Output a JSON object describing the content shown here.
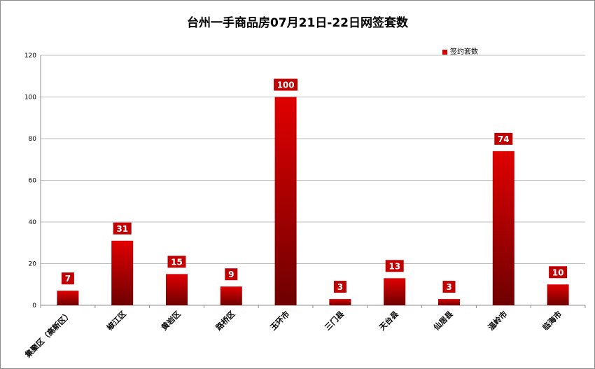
{
  "chart_data": {
    "type": "bar",
    "title": "台州一手商品房07月21日-22日网签套数",
    "categories": [
      "集聚区（高新区）",
      "椒江区",
      "黄岩区",
      "路桥区",
      "玉环市",
      "三门县",
      "天台县",
      "仙居县",
      "温岭市",
      "临海市"
    ],
    "series": [
      {
        "name": "签约套数",
        "values": [
          7,
          31,
          15,
          9,
          100,
          3,
          13,
          3,
          74,
          10
        ]
      }
    ],
    "ylim": [
      0,
      120
    ],
    "yticks": [
      0,
      20,
      40,
      60,
      80,
      100,
      120
    ],
    "grid": true,
    "legend": "top-right",
    "colors": {
      "bar_top": "#e00000",
      "bar_bottom": "#6e0000",
      "label_bg": "#c00000"
    }
  }
}
